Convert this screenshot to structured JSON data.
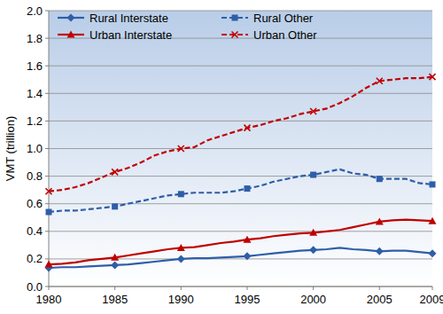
{
  "chart_data": {
    "type": "line",
    "y_label": "VMT (trillion)",
    "x": [
      1980,
      1981,
      1982,
      1983,
      1984,
      1985,
      1986,
      1987,
      1988,
      1989,
      1990,
      1991,
      1992,
      1993,
      1994,
      1995,
      1996,
      1997,
      1998,
      1999,
      2000,
      2001,
      2002,
      2003,
      2004,
      2005,
      2006,
      2007,
      2008,
      2009
    ],
    "xlim": [
      1980,
      2009
    ],
    "xticks": [
      1980,
      1985,
      1990,
      1995,
      2000,
      2005,
      2009
    ],
    "ylim": [
      0,
      2
    ],
    "yticks": [
      {
        "value": 0,
        "label": "0.0"
      },
      0.2,
      0.4,
      0.6,
      0.8,
      {
        "value": 1,
        "label": "1.0"
      },
      1.2,
      1.4,
      1.6,
      1.8,
      {
        "value": 2,
        "label": "2.0"
      }
    ],
    "grid": true,
    "legend": "top-left",
    "series": [
      {
        "name": "Rural Interstate",
        "color": "#2e5ea8",
        "marker": "diamond",
        "line_style": "solid",
        "values": [
          0.135,
          0.14,
          0.14,
          0.145,
          0.15,
          0.155,
          0.16,
          0.17,
          0.18,
          0.19,
          0.2,
          0.205,
          0.205,
          0.21,
          0.215,
          0.22,
          0.23,
          0.24,
          0.25,
          0.26,
          0.265,
          0.27,
          0.28,
          0.27,
          0.265,
          0.255,
          0.26,
          0.26,
          0.25,
          0.24
        ]
      },
      {
        "name": "Rural Other",
        "color": "#2e5ea8",
        "marker": "square",
        "line_style": "dashed",
        "values": [
          0.54,
          0.55,
          0.55,
          0.56,
          0.57,
          0.58,
          0.6,
          0.62,
          0.64,
          0.66,
          0.67,
          0.68,
          0.68,
          0.68,
          0.69,
          0.71,
          0.73,
          0.76,
          0.78,
          0.8,
          0.81,
          0.83,
          0.85,
          0.82,
          0.81,
          0.78,
          0.78,
          0.78,
          0.75,
          0.74
        ]
      },
      {
        "name": "Urban Interstate",
        "color": "#c00000",
        "marker": "triangle",
        "line_style": "solid",
        "values": [
          0.16,
          0.165,
          0.175,
          0.19,
          0.2,
          0.21,
          0.225,
          0.24,
          0.255,
          0.27,
          0.28,
          0.285,
          0.3,
          0.315,
          0.325,
          0.34,
          0.35,
          0.365,
          0.375,
          0.385,
          0.39,
          0.4,
          0.41,
          0.43,
          0.45,
          0.47,
          0.48,
          0.485,
          0.48,
          0.475
        ]
      },
      {
        "name": "Urban Other",
        "color": "#c00000",
        "marker": "x",
        "line_style": "dashed",
        "values": [
          0.69,
          0.7,
          0.72,
          0.75,
          0.79,
          0.83,
          0.86,
          0.9,
          0.95,
          0.98,
          1.0,
          1.01,
          1.06,
          1.09,
          1.12,
          1.15,
          1.17,
          1.2,
          1.22,
          1.25,
          1.27,
          1.29,
          1.33,
          1.38,
          1.44,
          1.49,
          1.5,
          1.51,
          1.51,
          1.52
        ]
      }
    ]
  }
}
